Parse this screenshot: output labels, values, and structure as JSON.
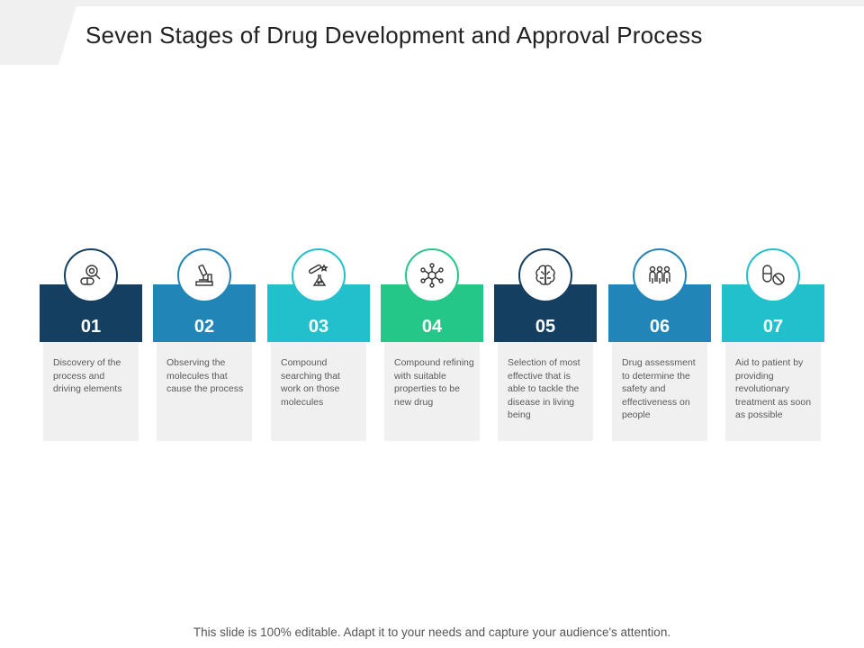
{
  "title": "Seven Stages of Drug Development and Approval Process",
  "footer": "This slide is 100% editable. Adapt it to your needs and capture your audience's attention.",
  "stages": [
    {
      "number": "01",
      "text": "Discovery of the process and driving elements",
      "icon": "magnifier-pill-icon",
      "color": "#143f61"
    },
    {
      "number": "02",
      "text": "Observing the molecules that cause the process",
      "icon": "microscope-icon",
      "color": "#2185b8"
    },
    {
      "number": "03",
      "text": "Compound searching that work on those molecules",
      "icon": "test-tube-flask-icon",
      "color": "#22c0cc"
    },
    {
      "number": "04",
      "text": "Compound refining with suitable properties to be new drug",
      "icon": "molecule-icon",
      "color": "#25c788"
    },
    {
      "number": "05",
      "text": "Selection of most effective that is able to tackle the disease in living being",
      "icon": "brain-icon",
      "color": "#143f61"
    },
    {
      "number": "06",
      "text": "Drug assessment to determine the safety and effectiveness on people",
      "icon": "people-group-icon",
      "color": "#2185b8"
    },
    {
      "number": "07",
      "text": "Aid to patient by providing revolutionary treatment as soon as possible",
      "icon": "pills-icon",
      "color": "#22c0cc"
    }
  ]
}
